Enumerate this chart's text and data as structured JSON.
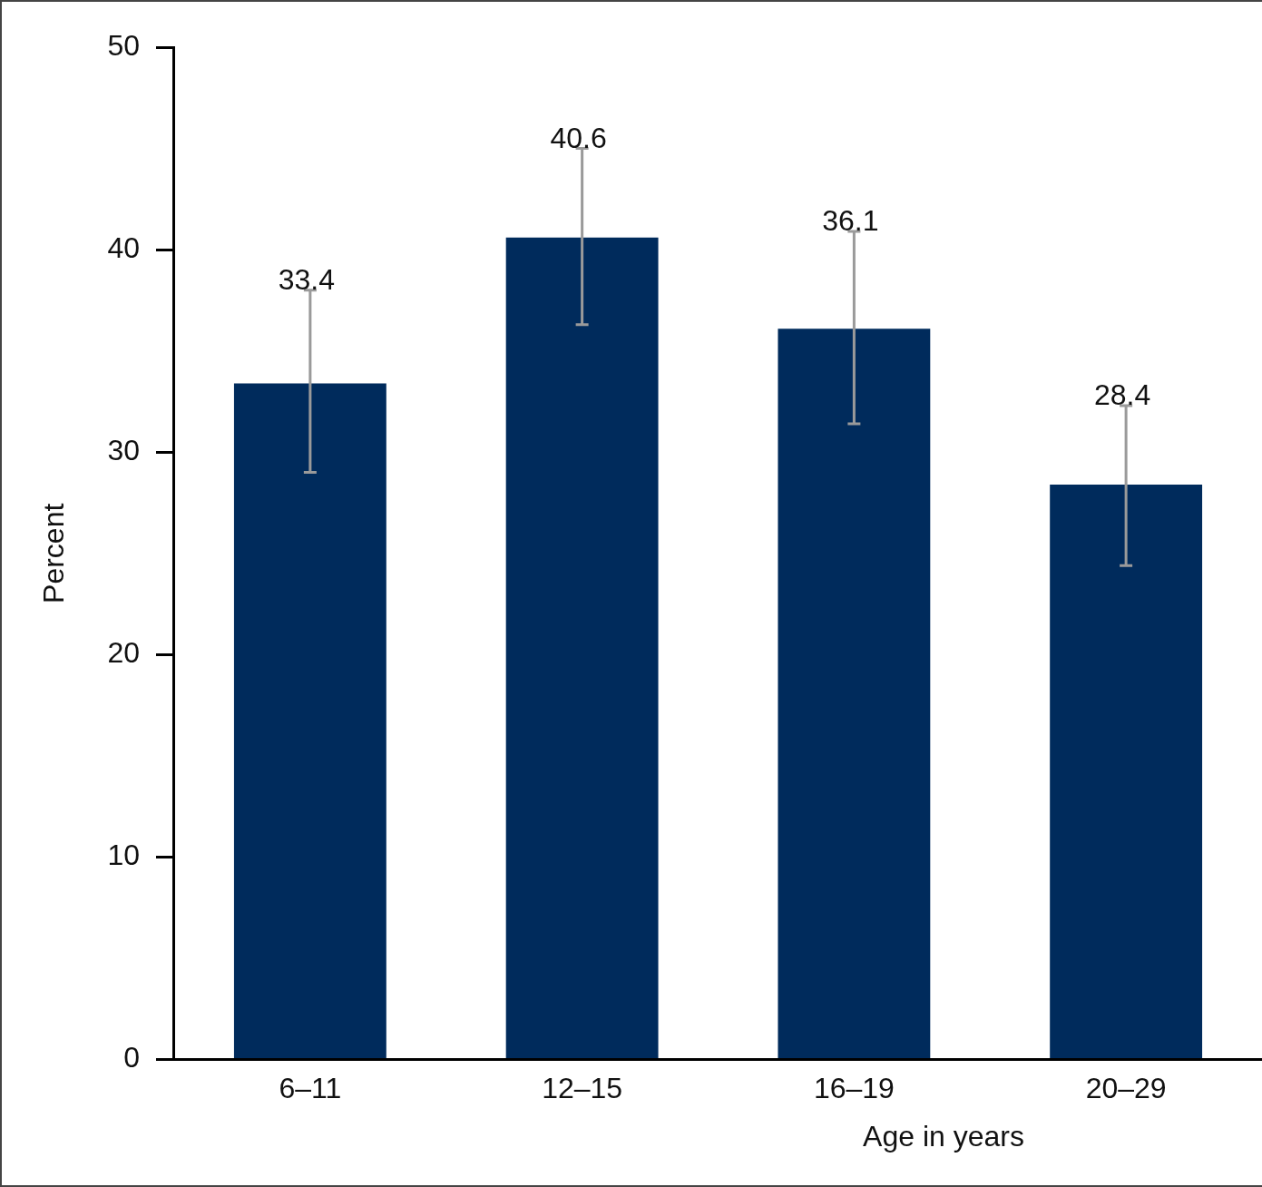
{
  "chart_data": {
    "type": "bar",
    "categories": [
      "6–11",
      "12–15",
      "16–19",
      "20–29"
    ],
    "values": [
      33.4,
      40.6,
      36.1,
      28.4
    ],
    "color": "#002b5c",
    "errors": [
      [
        29.0,
        38.0
      ],
      [
        36.3,
        45.0
      ],
      [
        31.4,
        40.9
      ],
      [
        24.4,
        32.3
      ]
    ],
    "data_labels": true,
    "xlabel": "Age in years",
    "ylabel": "Percent",
    "ylim": [
      0,
      50
    ],
    "yticks": [
      0,
      10,
      20,
      30,
      40,
      50
    ],
    "grid": false,
    "legend": false
  }
}
